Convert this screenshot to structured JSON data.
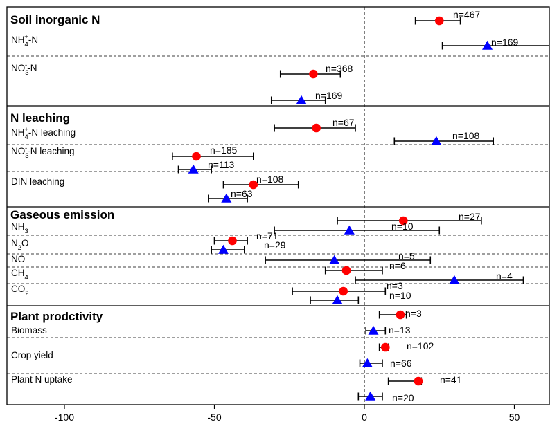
{
  "chart_data": {
    "type": "forest",
    "x_range": [
      -107,
      62
    ],
    "x_ticks": [
      -100,
      -50,
      0,
      50
    ],
    "reference_line_x": 0,
    "marker_colors": {
      "circle": "#ff0000",
      "triangle": "#0000ff"
    },
    "sections": [
      {
        "title": "Soil inorganic N",
        "rows": [
          {
            "label_main": "NH",
            "label_sub": "4",
            "label_sup": "+",
            "label_rest": "-N",
            "points": [
              {
                "marker": "circle",
                "mean": 25,
                "lo": 17,
                "hi": 32,
                "n": "n=467"
              },
              {
                "marker": "triangle",
                "mean": 41,
                "lo": 26,
                "hi": 62,
                "n": "n=169"
              }
            ]
          },
          {
            "label_main": "NO",
            "label_sub": "3",
            "label_sup": "-",
            "label_rest": "-N",
            "points": [
              {
                "marker": "circle",
                "mean": -17,
                "lo": -28,
                "hi": -8,
                "n": "n=368"
              },
              {
                "marker": "triangle",
                "mean": -21,
                "lo": -31,
                "hi": -13,
                "n": "n=169"
              }
            ]
          }
        ]
      },
      {
        "title": "N leaching",
        "rows": [
          {
            "label_main": "NH",
            "label_sub": "4",
            "label_sup": "+",
            "label_rest": "-N leaching",
            "points": [
              {
                "marker": "circle",
                "mean": -16,
                "lo": -30,
                "hi": -3,
                "n": "n=67"
              },
              {
                "marker": "triangle",
                "mean": 24,
                "lo": 10,
                "hi": 43,
                "n": "n=108"
              }
            ]
          },
          {
            "label_main": "NO",
            "label_sub": "3",
            "label_sup": "-",
            "label_rest": "-N leaching",
            "points": [
              {
                "marker": "circle",
                "mean": -56,
                "lo": -64,
                "hi": -37,
                "n": "n=185"
              },
              {
                "marker": "triangle",
                "mean": -57,
                "lo": -62,
                "hi": -51,
                "n": "n=113"
              }
            ]
          },
          {
            "label_main": "DIN leaching",
            "label_sub": "",
            "label_sup": "",
            "label_rest": "",
            "points": [
              {
                "marker": "circle",
                "mean": -37,
                "lo": -47,
                "hi": -22,
                "n": "n=108"
              },
              {
                "marker": "triangle",
                "mean": -46,
                "lo": -52,
                "hi": -39,
                "n": "n=63"
              }
            ]
          }
        ]
      },
      {
        "title": "Gaseous emission",
        "rows": [
          {
            "label_main": "NH",
            "label_sub": "3",
            "label_sup": "",
            "label_rest": "",
            "points": [
              {
                "marker": "circle",
                "mean": 13,
                "lo": -9,
                "hi": 39,
                "n": "n=27"
              },
              {
                "marker": "triangle",
                "mean": -5,
                "lo": -30,
                "hi": 25,
                "n": "n=10"
              }
            ]
          },
          {
            "label_main": "N",
            "label_sub": "2",
            "label_sup": "",
            "label_rest": "O",
            "points": [
              {
                "marker": "circle",
                "mean": -44,
                "lo": -50,
                "hi": -39,
                "n": "n=71"
              },
              {
                "marker": "triangle",
                "mean": -47,
                "lo": -51,
                "hi": -40,
                "n": "n=29"
              }
            ]
          },
          {
            "label_main": "NO",
            "label_sub": "",
            "label_sup": "",
            "label_rest": "",
            "points": [
              {
                "marker": "triangle",
                "mean": -10,
                "lo": -33,
                "hi": 22,
                "n": "n=5"
              }
            ]
          },
          {
            "label_main": "CH",
            "label_sub": "4",
            "label_sup": "",
            "label_rest": "",
            "points": [
              {
                "marker": "circle",
                "mean": -6,
                "lo": -13,
                "hi": 6,
                "n": "n=6"
              },
              {
                "marker": "triangle",
                "mean": 30,
                "lo": -3,
                "hi": 53,
                "n": "n=4"
              }
            ]
          },
          {
            "label_main": "CO",
            "label_sub": "2",
            "label_sup": "",
            "label_rest": "",
            "points": [
              {
                "marker": "circle",
                "mean": -7,
                "lo": -24,
                "hi": 7,
                "n": "n=3"
              },
              {
                "marker": "triangle",
                "mean": -9,
                "lo": -18,
                "hi": -2,
                "n": "n=10"
              }
            ]
          }
        ]
      },
      {
        "title": "Plant prodctivity",
        "rows": [
          {
            "label_main": "Biomass",
            "label_sub": "",
            "label_sup": "",
            "label_rest": "",
            "points": [
              {
                "marker": "circle",
                "mean": 12,
                "lo": 5,
                "hi": 14,
                "n": "n=3"
              },
              {
                "marker": "triangle",
                "mean": 3,
                "lo": 0.5,
                "hi": 7,
                "n": "n=13"
              }
            ]
          },
          {
            "label_main": "Crop yield",
            "label_sub": "",
            "label_sup": "",
            "label_rest": "",
            "points": [
              {
                "marker": "circle",
                "mean": 7,
                "lo": 5,
                "hi": 8,
                "n": "n=102"
              },
              {
                "marker": "triangle",
                "mean": 1,
                "lo": -1.5,
                "hi": 6,
                "n": "n=66"
              }
            ]
          },
          {
            "label_main": "Plant N uptake",
            "label_sub": "",
            "label_sup": "",
            "label_rest": "",
            "points": [
              {
                "marker": "circle",
                "mean": 18,
                "lo": 8,
                "hi": 19,
                "n": "n=41"
              },
              {
                "marker": "triangle",
                "mean": 2,
                "lo": -2,
                "hi": 6,
                "n": "n=20"
              }
            ]
          }
        ]
      }
    ]
  }
}
